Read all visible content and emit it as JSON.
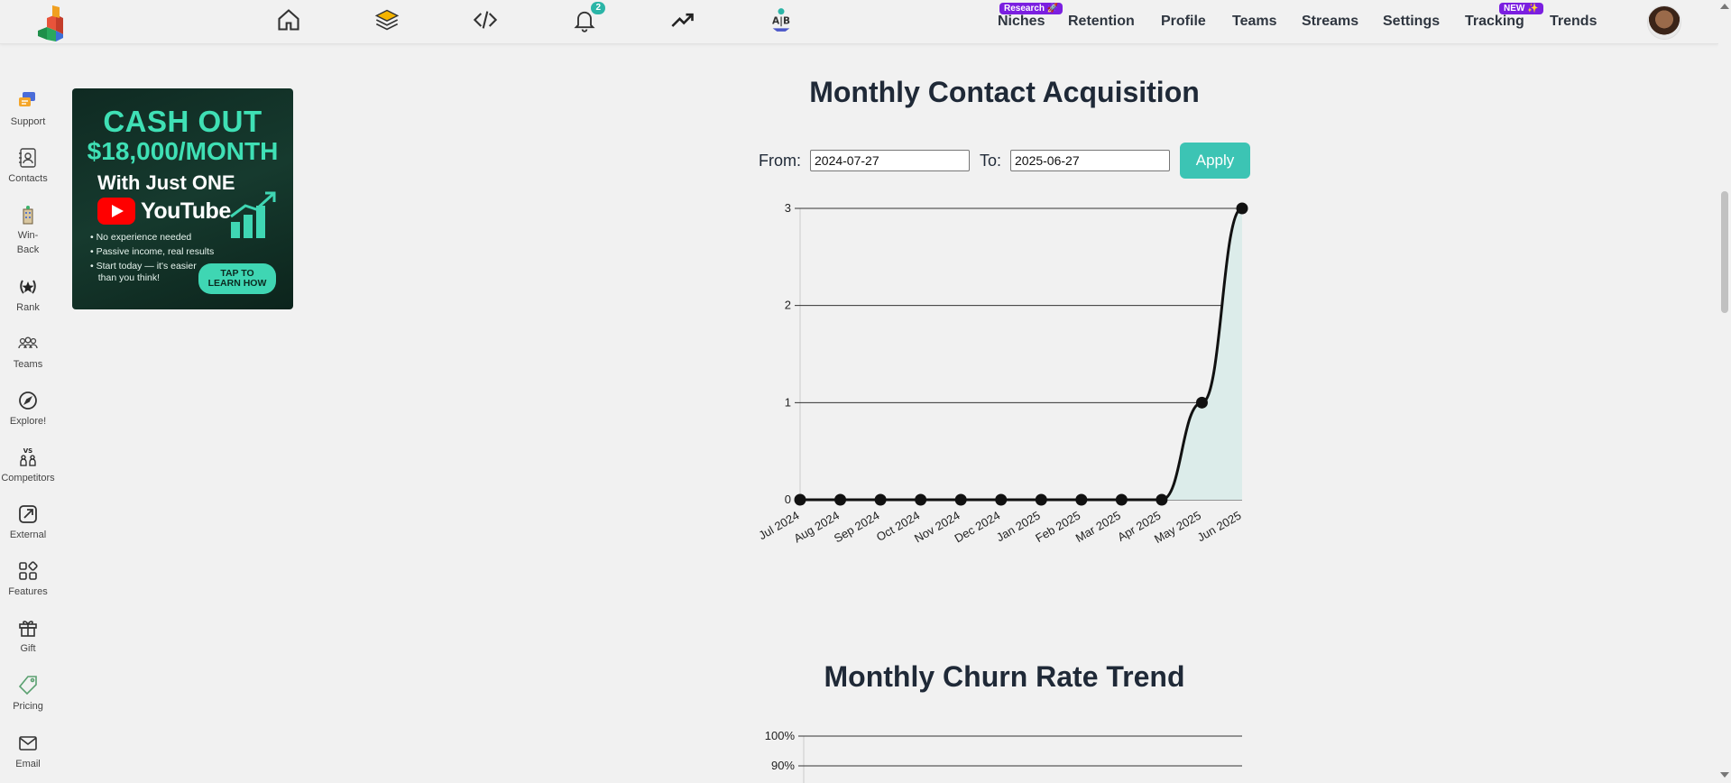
{
  "nav": {
    "icons": [
      "home-icon",
      "layers-icon",
      "code-icon",
      "bell-icon",
      "trending-icon",
      "ab-test-icon"
    ],
    "notification_count": "2",
    "links": [
      {
        "label": "Niches",
        "badge": "Research 🚀"
      },
      {
        "label": "Retention",
        "badge": ""
      },
      {
        "label": "Profile",
        "badge": ""
      },
      {
        "label": "Teams",
        "badge": ""
      },
      {
        "label": "Streams",
        "badge": ""
      },
      {
        "label": "Settings",
        "badge": ""
      },
      {
        "label": "Tracking",
        "badge": "NEW ✨"
      },
      {
        "label": "Trends",
        "badge": ""
      }
    ],
    "badge_color": "#7b1fe0"
  },
  "sidebar": {
    "items": [
      {
        "label": "Support",
        "icon": "support-chat-icon"
      },
      {
        "label": "Contacts",
        "icon": "contacts-book-icon"
      },
      {
        "label": "Win-\nBack",
        "icon": "win-back-icon"
      },
      {
        "label": "Rank",
        "icon": "rank-laurel-icon"
      },
      {
        "label": "Teams",
        "icon": "teams-icon"
      },
      {
        "label": "Explore!",
        "icon": "compass-icon"
      },
      {
        "label": "Competitors",
        "icon": "competitors-vs-icon"
      },
      {
        "label": "External",
        "icon": "external-link-icon"
      },
      {
        "label": "Features",
        "icon": "features-grid-icon"
      },
      {
        "label": "Gift",
        "icon": "gift-icon"
      },
      {
        "label": "Pricing",
        "icon": "price-tag-icon"
      },
      {
        "label": "Email",
        "icon": "email-icon"
      }
    ]
  },
  "ad": {
    "line1": "CASH OUT",
    "line2": "$18,000/MONTH",
    "line3": "With Just ONE",
    "line4": "YouTube",
    "bullets": [
      "• No experience needed",
      "• Passive income, real results",
      "• Start today — it's easier",
      "   than you think!"
    ],
    "cta_line1": "TAP TO",
    "cta_line2": "LEARN HOW"
  },
  "acquisition": {
    "title": "Monthly Contact Acquisition",
    "from_label": "From:",
    "from_value": "2024-07-27",
    "to_label": "To:",
    "to_value": "2025-06-27",
    "apply_label": "Apply"
  },
  "churn": {
    "title": "Monthly Churn Rate Trend"
  },
  "accent_color": "#3cc4b4",
  "chart_data": [
    {
      "type": "area",
      "title": "Monthly Contact Acquisition",
      "categories": [
        "Jul 2024",
        "Aug 2024",
        "Sep 2024",
        "Oct 2024",
        "Nov 2024",
        "Dec 2024",
        "Jan 2025",
        "Feb 2025",
        "Mar 2025",
        "Apr 2025",
        "May 2025",
        "Jun 2025"
      ],
      "values": [
        0,
        0,
        0,
        0,
        0,
        0,
        0,
        0,
        0,
        0,
        1,
        3
      ],
      "yticks": [
        "0",
        "1",
        "2",
        "3"
      ],
      "ylim": [
        0,
        3
      ],
      "grid": true
    },
    {
      "type": "line",
      "title": "Monthly Churn Rate Trend",
      "yticks": [
        "100%",
        "90%"
      ],
      "grid": true
    }
  ]
}
